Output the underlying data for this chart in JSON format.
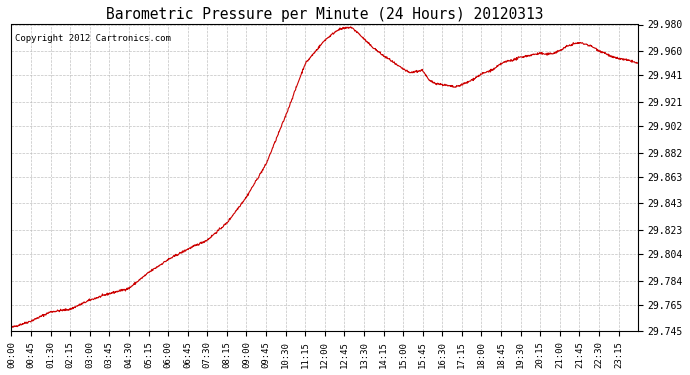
{
  "title": "Barometric Pressure per Minute (24 Hours) 20120313",
  "copyright": "Copyright 2012 Cartronics.com",
  "line_color": "#cc0000",
  "background_color": "#ffffff",
  "plot_bg_color": "#ffffff",
  "grid_color": "#bbbbbb",
  "ylim": [
    29.745,
    29.98
  ],
  "yticks": [
    29.745,
    29.765,
    29.784,
    29.804,
    29.823,
    29.843,
    29.863,
    29.882,
    29.902,
    29.921,
    29.941,
    29.96,
    29.98
  ],
  "xtick_labels": [
    "00:00",
    "00:45",
    "01:30",
    "02:15",
    "03:00",
    "03:45",
    "04:30",
    "05:15",
    "06:00",
    "06:45",
    "07:30",
    "08:15",
    "09:00",
    "09:45",
    "10:30",
    "11:15",
    "12:00",
    "12:45",
    "13:30",
    "14:15",
    "15:00",
    "15:45",
    "16:30",
    "17:15",
    "18:00",
    "18:45",
    "19:30",
    "20:15",
    "21:00",
    "21:45",
    "22:30",
    "23:15"
  ],
  "keypoints": [
    [
      0,
      29.748
    ],
    [
      45,
      29.753
    ],
    [
      90,
      29.76
    ],
    [
      135,
      29.762
    ],
    [
      180,
      29.769
    ],
    [
      225,
      29.774
    ],
    [
      270,
      29.778
    ],
    [
      315,
      29.79
    ],
    [
      360,
      29.8
    ],
    [
      405,
      29.808
    ],
    [
      450,
      29.815
    ],
    [
      495,
      29.828
    ],
    [
      540,
      29.848
    ],
    [
      585,
      29.873
    ],
    [
      630,
      29.91
    ],
    [
      675,
      29.95
    ],
    [
      720,
      29.968
    ],
    [
      735,
      29.972
    ],
    [
      750,
      29.976
    ],
    [
      765,
      29.977
    ],
    [
      780,
      29.978
    ],
    [
      795,
      29.974
    ],
    [
      810,
      29.969
    ],
    [
      825,
      29.964
    ],
    [
      840,
      29.96
    ],
    [
      855,
      29.956
    ],
    [
      870,
      29.953
    ],
    [
      885,
      29.949
    ],
    [
      900,
      29.946
    ],
    [
      915,
      29.943
    ],
    [
      930,
      29.944
    ],
    [
      945,
      29.945
    ],
    [
      960,
      29.937
    ],
    [
      975,
      29.935
    ],
    [
      990,
      29.934
    ],
    [
      1005,
      29.933
    ],
    [
      1020,
      29.932
    ],
    [
      1035,
      29.934
    ],
    [
      1050,
      29.936
    ],
    [
      1065,
      29.939
    ],
    [
      1080,
      29.942
    ],
    [
      1095,
      29.944
    ],
    [
      1110,
      29.946
    ],
    [
      1125,
      29.95
    ],
    [
      1140,
      29.952
    ],
    [
      1155,
      29.953
    ],
    [
      1170,
      29.955
    ],
    [
      1185,
      29.956
    ],
    [
      1200,
      29.957
    ],
    [
      1215,
      29.958
    ],
    [
      1230,
      29.957
    ],
    [
      1245,
      29.958
    ],
    [
      1260,
      29.96
    ],
    [
      1275,
      29.963
    ],
    [
      1290,
      29.965
    ],
    [
      1305,
      29.966
    ],
    [
      1320,
      29.965
    ],
    [
      1335,
      29.963
    ],
    [
      1350,
      29.96
    ],
    [
      1365,
      29.958
    ],
    [
      1380,
      29.955
    ],
    [
      1395,
      29.954
    ],
    [
      1410,
      29.953
    ],
    [
      1425,
      29.952
    ],
    [
      1440,
      29.95
    ]
  ]
}
